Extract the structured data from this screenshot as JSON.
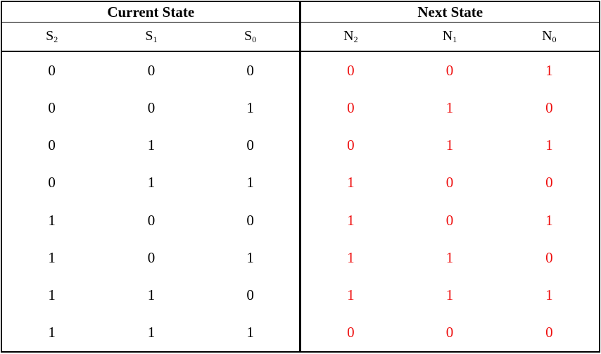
{
  "group_headers": {
    "current": "Current State",
    "next": "Next State"
  },
  "columns": [
    {
      "base": "S",
      "sub": "2"
    },
    {
      "base": "S",
      "sub": "1"
    },
    {
      "base": "S",
      "sub": "0"
    },
    {
      "base": "N",
      "sub": "2"
    },
    {
      "base": "N",
      "sub": "1"
    },
    {
      "base": "N",
      "sub": "0"
    }
  ],
  "rows": [
    [
      "0",
      "0",
      "0",
      "0",
      "0",
      "1"
    ],
    [
      "0",
      "0",
      "1",
      "0",
      "1",
      "0"
    ],
    [
      "0",
      "1",
      "0",
      "0",
      "1",
      "1"
    ],
    [
      "0",
      "1",
      "1",
      "1",
      "0",
      "0"
    ],
    [
      "1",
      "0",
      "0",
      "1",
      "0",
      "1"
    ],
    [
      "1",
      "0",
      "1",
      "1",
      "1",
      "0"
    ],
    [
      "1",
      "1",
      "0",
      "1",
      "1",
      "1"
    ],
    [
      "1",
      "1",
      "1",
      "0",
      "0",
      "0"
    ]
  ],
  "colors": {
    "next_state_text": "#ee1111",
    "current_state_text": "#000000"
  }
}
